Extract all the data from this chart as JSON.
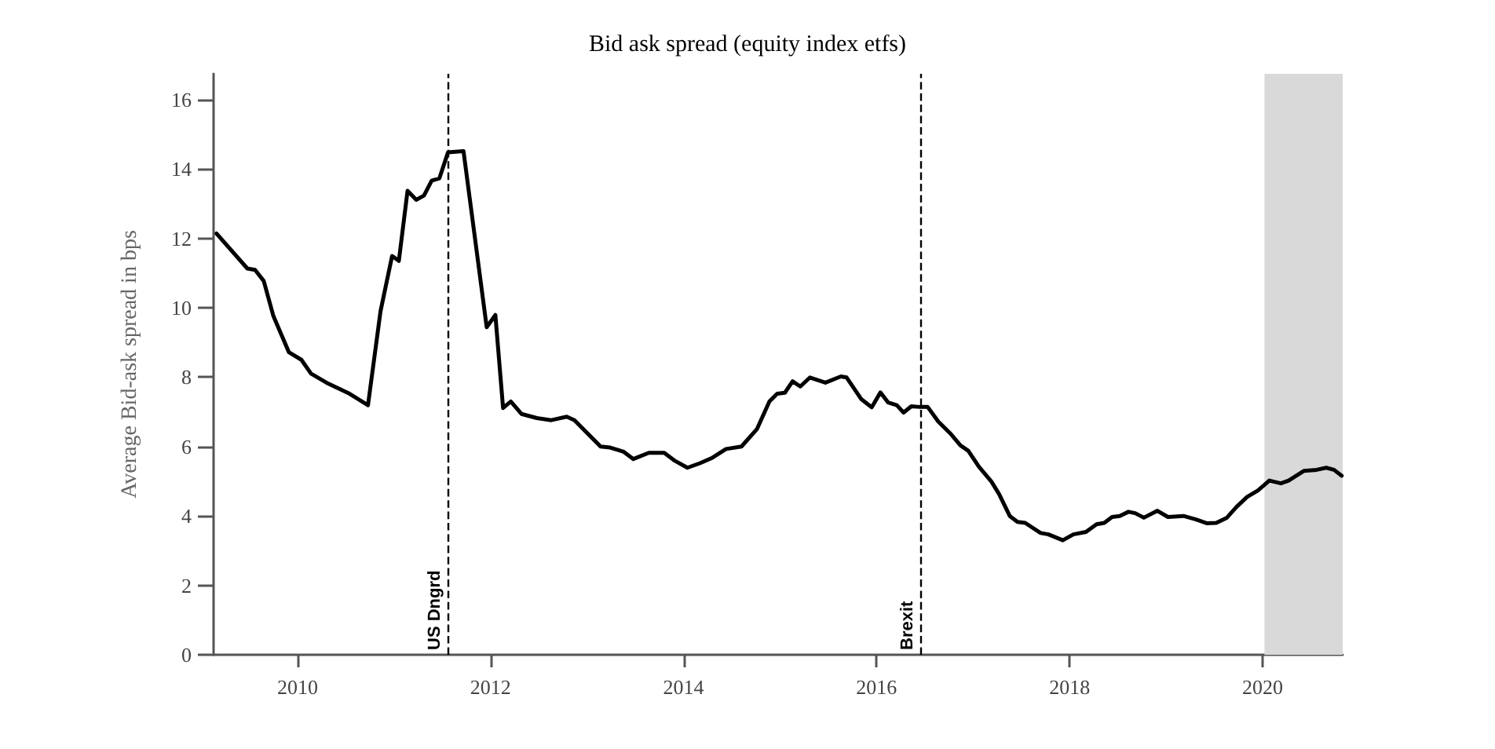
{
  "chart_data": {
    "type": "line",
    "title": "Bid ask spread (equity index etfs)",
    "ylabel": "Average Bid-ask spread in bps",
    "x": [
      2009.16,
      2009.48,
      2009.56,
      2009.65,
      2009.75,
      2009.91,
      2010.04,
      2010.14,
      2010.3,
      2010.54,
      2010.73,
      2010.86,
      2010.98,
      2011.05,
      2011.14,
      2011.23,
      2011.31,
      2011.39,
      2011.47,
      2011.56,
      2011.72,
      2011.96,
      2012.05,
      2012.13,
      2012.21,
      2012.32,
      2012.48,
      2012.63,
      2012.79,
      2012.87,
      2013.14,
      2013.24,
      2013.38,
      2013.48,
      2013.64,
      2013.8,
      2013.91,
      2014.04,
      2014.17,
      2014.3,
      2014.44,
      2014.6,
      2014.76,
      2014.89,
      2014.97,
      2015.05,
      2015.13,
      2015.21,
      2015.31,
      2015.47,
      2015.63,
      2015.69,
      2015.84,
      2015.95,
      2016.04,
      2016.12,
      2016.21,
      2016.28,
      2016.36,
      2016.45,
      2016.53,
      2016.64,
      2016.77,
      2016.87,
      2016.95,
      2017.06,
      2017.19,
      2017.27,
      2017.38,
      2017.46,
      2017.54,
      2017.7,
      2017.78,
      2017.93,
      2018.04,
      2018.17,
      2018.28,
      2018.36,
      2018.44,
      2018.52,
      2018.61,
      2018.68,
      2018.77,
      2018.91,
      2019.02,
      2019.18,
      2019.31,
      2019.42,
      2019.52,
      2019.63,
      2019.73,
      2019.84,
      2019.95,
      2020.07,
      2020.19,
      2020.27,
      2020.43,
      2020.56,
      2020.66,
      2020.74,
      2020.82
    ],
    "series": [
      {
        "color": "#000000",
        "values": [
          12.14,
          11.13,
          11.09,
          10.77,
          9.76,
          8.72,
          8.5,
          8.1,
          7.84,
          7.52,
          7.19,
          9.9,
          11.49,
          11.35,
          13.37,
          13.11,
          13.23,
          13.66,
          13.73,
          14.48,
          14.51,
          9.44,
          9.79,
          7.11,
          7.3,
          6.94,
          6.82,
          6.76,
          6.86,
          6.76,
          6.0,
          5.97,
          5.85,
          5.64,
          5.82,
          5.82,
          5.59,
          5.39,
          5.52,
          5.68,
          5.93,
          6.0,
          6.5,
          7.3,
          7.52,
          7.55,
          7.88,
          7.73,
          7.99,
          7.84,
          8.02,
          7.99,
          7.37,
          7.13,
          7.56,
          7.27,
          7.19,
          6.98,
          7.16,
          7.14,
          7.14,
          6.72,
          6.36,
          6.03,
          5.88,
          5.42,
          4.99,
          4.63,
          4.0,
          3.83,
          3.8,
          3.51,
          3.47,
          3.3,
          3.47,
          3.54,
          3.76,
          3.8,
          3.97,
          4.0,
          4.12,
          4.08,
          3.95,
          4.15,
          3.97,
          4.0,
          3.9,
          3.79,
          3.8,
          3.95,
          4.26,
          4.55,
          4.73,
          5.02,
          4.94,
          5.02,
          5.3,
          5.33,
          5.39,
          5.33,
          5.16
        ]
      }
    ],
    "xlim": [
      2009.13,
      2020.83
    ],
    "xticks": [
      2010,
      2012,
      2014,
      2016,
      2018,
      2020
    ],
    "ylim": [
      0,
      16.74
    ],
    "yticks": [
      0,
      2,
      4,
      6,
      8,
      10,
      12,
      14,
      16
    ],
    "grid": false,
    "marker": "none",
    "line_style": "solid",
    "ref_lines": [
      {
        "axis": "x",
        "value": 2011.56,
        "label": "US Dngrd",
        "line_style": "dashed",
        "color": "#000000"
      },
      {
        "axis": "x",
        "value": 2016.46,
        "label": "Brexit",
        "line_style": "dashed",
        "color": "#000000"
      }
    ],
    "bands": [
      {
        "axis": "x",
        "from": 2020.02,
        "to": 2020.83,
        "color": "#d9d9d9"
      }
    ]
  }
}
